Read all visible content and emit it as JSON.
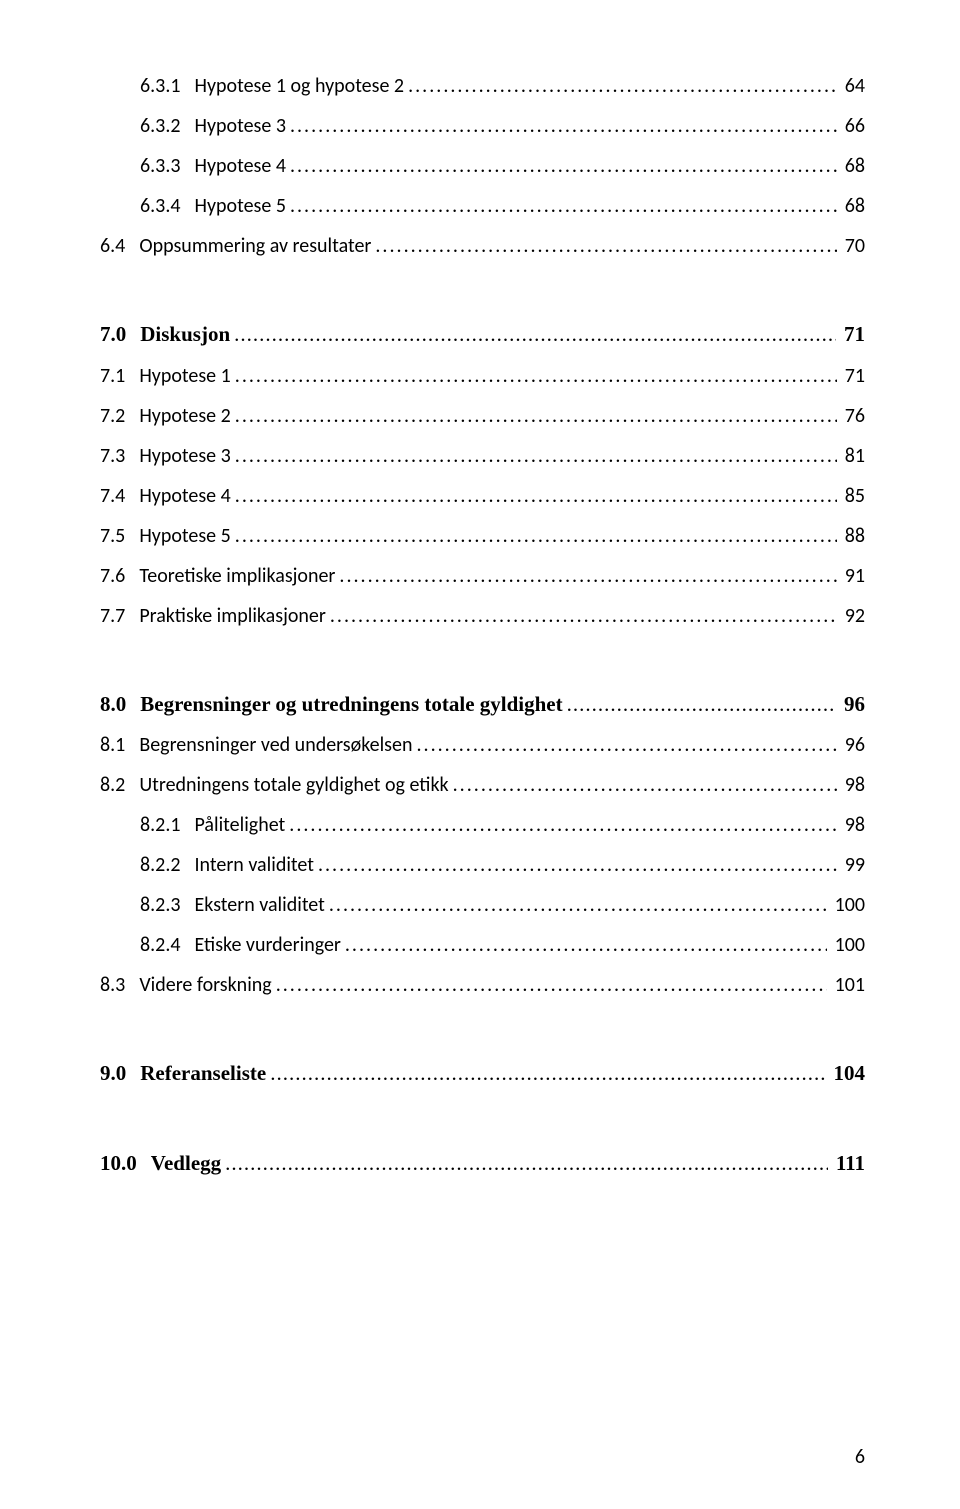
{
  "toc": [
    {
      "num": "6.3.1",
      "title": "Hypotese 1 og hypotese 2",
      "page": "64",
      "indent": 2,
      "bold": false,
      "serif": false,
      "gap": ""
    },
    {
      "num": "6.3.2",
      "title": "Hypotese 3",
      "page": "66",
      "indent": 2,
      "bold": false,
      "serif": false,
      "gap": ""
    },
    {
      "num": "6.3.3",
      "title": "Hypotese 4",
      "page": "68",
      "indent": 2,
      "bold": false,
      "serif": false,
      "gap": ""
    },
    {
      "num": "6.3.4",
      "title": "Hypotese 5",
      "page": "68",
      "indent": 2,
      "bold": false,
      "serif": false,
      "gap": ""
    },
    {
      "num": "6.4",
      "title": "Oppsummering av resultater",
      "page": "70",
      "indent": 1,
      "bold": false,
      "serif": false,
      "gap": ""
    },
    {
      "num": "7.0",
      "title": "Diskusjon",
      "page": "71",
      "indent": 0,
      "bold": true,
      "serif": true,
      "gap": "group-gap"
    },
    {
      "num": "7.1",
      "title": "Hypotese 1",
      "page": "71",
      "indent": 1,
      "bold": false,
      "serif": false,
      "gap": ""
    },
    {
      "num": "7.2",
      "title": "Hypotese 2",
      "page": "76",
      "indent": 1,
      "bold": false,
      "serif": false,
      "gap": ""
    },
    {
      "num": "7.3",
      "title": "Hypotese 3",
      "page": "81",
      "indent": 1,
      "bold": false,
      "serif": false,
      "gap": ""
    },
    {
      "num": "7.4",
      "title": "Hypotese 4",
      "page": "85",
      "indent": 1,
      "bold": false,
      "serif": false,
      "gap": ""
    },
    {
      "num": "7.5",
      "title": "Hypotese 5",
      "page": "88",
      "indent": 1,
      "bold": false,
      "serif": false,
      "gap": ""
    },
    {
      "num": "7.6",
      "title": "Teoretiske implikasjoner",
      "page": "91",
      "indent": 1,
      "bold": false,
      "serif": false,
      "gap": ""
    },
    {
      "num": "7.7",
      "title": "Praktiske implikasjoner",
      "page": "92",
      "indent": 1,
      "bold": false,
      "serif": false,
      "gap": ""
    },
    {
      "num": "8.0",
      "title": "Begrensninger og utredningens totale gyldighet",
      "page": "96",
      "indent": 0,
      "bold": true,
      "serif": true,
      "gap": "group-gap"
    },
    {
      "num": "8.1",
      "title": "Begrensninger ved undersøkelsen",
      "page": "96",
      "indent": 1,
      "bold": false,
      "serif": false,
      "gap": ""
    },
    {
      "num": "8.2",
      "title": "Utredningens totale gyldighet og etikk",
      "page": "98",
      "indent": 1,
      "bold": false,
      "serif": false,
      "gap": ""
    },
    {
      "num": "8.2.1",
      "title": "Pålitelighet",
      "page": "98",
      "indent": 2,
      "bold": false,
      "serif": false,
      "gap": ""
    },
    {
      "num": "8.2.2",
      "title": "Intern validitet",
      "page": "99",
      "indent": 2,
      "bold": false,
      "serif": false,
      "gap": ""
    },
    {
      "num": "8.2.3",
      "title": "Ekstern validitet",
      "page": "100",
      "indent": 2,
      "bold": false,
      "serif": false,
      "gap": ""
    },
    {
      "num": "8.2.4",
      "title": "Etiske vurderinger",
      "page": "100",
      "indent": 2,
      "bold": false,
      "serif": false,
      "gap": ""
    },
    {
      "num": "8.3",
      "title": "Videre forskning",
      "page": "101",
      "indent": 1,
      "bold": false,
      "serif": false,
      "gap": ""
    },
    {
      "num": "9.0",
      "title": "Referanseliste",
      "page": "104",
      "indent": 0,
      "bold": true,
      "serif": true,
      "gap": "group-gap"
    },
    {
      "num": "10.0",
      "title": "Vedlegg",
      "page": "111",
      "indent": 0,
      "bold": true,
      "serif": true,
      "gap": "group-gap"
    }
  ],
  "footer_page": "6"
}
